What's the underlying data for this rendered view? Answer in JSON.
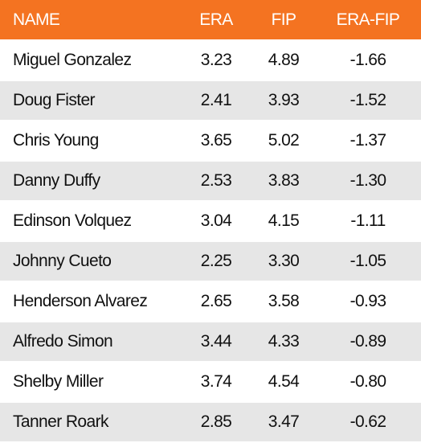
{
  "table": {
    "header": [
      "NAME",
      "ERA",
      "FIP",
      "ERA-FIP"
    ],
    "rows": [
      [
        "Miguel Gonzalez",
        "3.23",
        "4.89",
        "-1.66"
      ],
      [
        "Doug Fister",
        "2.41",
        "3.93",
        "-1.52"
      ],
      [
        "Chris Young",
        "3.65",
        "5.02",
        "-1.37"
      ],
      [
        "Danny Duffy",
        "2.53",
        "3.83",
        "-1.30"
      ],
      [
        "Edinson Volquez",
        "3.04",
        "4.15",
        "-1.11"
      ],
      [
        "Johnny Cueto",
        "2.25",
        "3.30",
        "-1.05"
      ],
      [
        "Henderson Alvarez",
        "2.65",
        "3.58",
        "-0.93"
      ],
      [
        "Alfredo Simon",
        "3.44",
        "4.33",
        "-0.89"
      ],
      [
        "Shelby Miller",
        "3.74",
        "4.54",
        "-0.80"
      ],
      [
        "Tanner Roark",
        "2.85",
        "3.47",
        "-0.62"
      ]
    ]
  }
}
